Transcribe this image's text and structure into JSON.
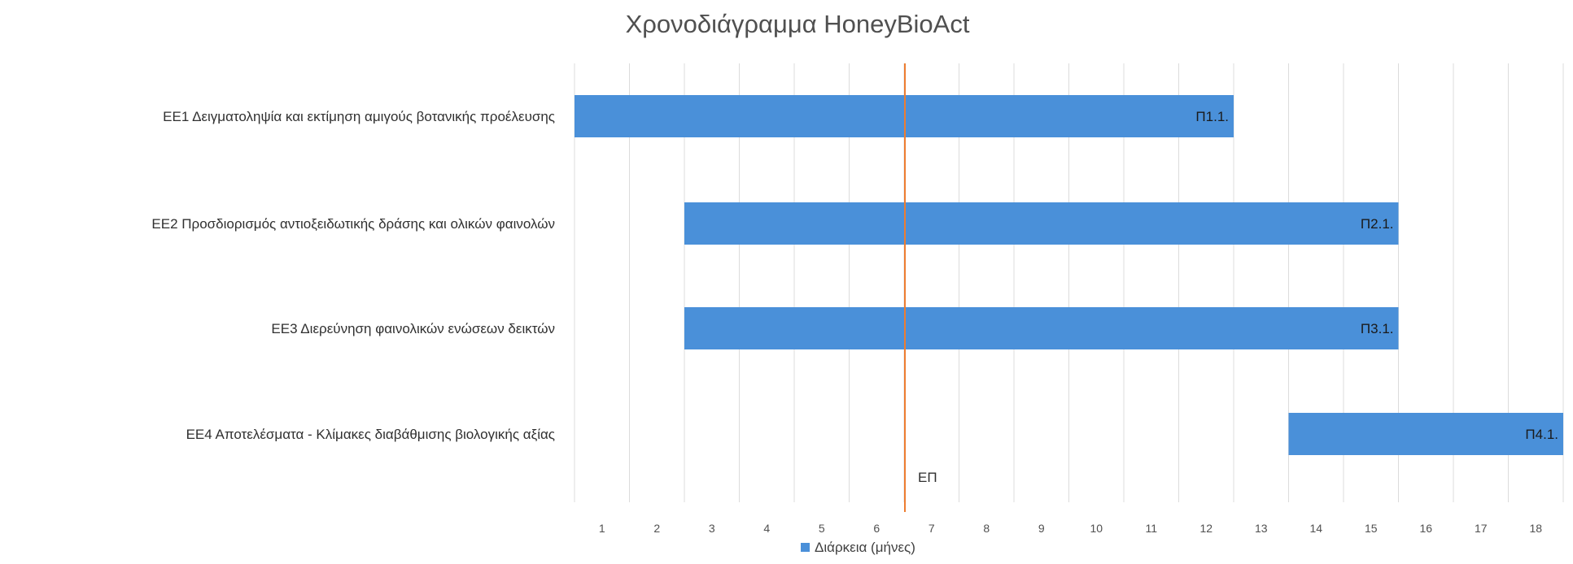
{
  "chart_data": {
    "type": "bar",
    "orientation": "horizontal",
    "title": "Χρονοδιάγραμμα HoneyBioAct",
    "xlabel": "",
    "ylabel": "",
    "x_ticks": [
      "1",
      "2",
      "3",
      "4",
      "5",
      "6",
      "7",
      "8",
      "9",
      "10",
      "11",
      "12",
      "13",
      "14",
      "15",
      "16",
      "17",
      "18"
    ],
    "xlim": [
      0,
      18
    ],
    "grid": "vertical",
    "categories": [
      "ΕΕ1 Δειγματοληψία και εκτίμηση αμιγούς βοτανικής προέλευσης",
      "ΕΕ2 Προσδιορισμός αντιοξειδωτικής δράσης και ολικών φαινολών",
      "ΕΕ3 Διερεύνηση φαινολικών ενώσεων δεικτών",
      "ΕΕ4 Αποτελέσματα - Κλίμακες διαβάθμισης βιολογικής αξίας"
    ],
    "series": [
      {
        "name": "Διάρκεια (μήνες)",
        "color": "#4a90d9",
        "start_month": [
          1,
          3,
          3,
          14
        ],
        "end_month": [
          12,
          15,
          15,
          18
        ],
        "values": [
          12,
          13,
          13,
          5
        ],
        "data_labels": [
          "Π1.1.",
          "Π2.1.",
          "Π3.1.",
          "Π4.1."
        ]
      }
    ],
    "marker": {
      "label": "ΕΠ",
      "month_boundary": 6,
      "color": "#ed7d31"
    },
    "legend": {
      "position": "bottom",
      "label": "Διάρκεια (μήνες)"
    }
  }
}
